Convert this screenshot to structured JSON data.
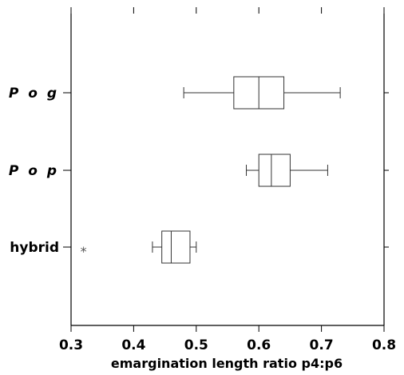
{
  "chart_data": {
    "type": "boxplot",
    "orientation": "horizontal",
    "title": "",
    "xlabel": "emargination length ratio p4:p6",
    "ylabel": "",
    "xlim": [
      0.3,
      0.8
    ],
    "x_ticks": [
      {
        "value": 0.3,
        "label": "0.3"
      },
      {
        "value": 0.4,
        "label": "0.4"
      },
      {
        "value": 0.5,
        "label": "0.5"
      },
      {
        "value": 0.6,
        "label": "0.6"
      },
      {
        "value": 0.7,
        "label": "0.7"
      },
      {
        "value": 0.8,
        "label": "0.8"
      }
    ],
    "grid": false,
    "categories": [
      {
        "label": "P o g",
        "italic": true,
        "whisker_low": 0.48,
        "q1": 0.56,
        "median": 0.6,
        "q3": 0.64,
        "whisker_high": 0.73,
        "outliers": []
      },
      {
        "label": "P o p",
        "italic": true,
        "whisker_low": 0.58,
        "q1": 0.6,
        "median": 0.62,
        "q3": 0.65,
        "whisker_high": 0.71,
        "outliers": []
      },
      {
        "label": "hybrid",
        "italic": false,
        "whisker_low": 0.43,
        "q1": 0.445,
        "median": 0.46,
        "q3": 0.49,
        "whisker_high": 0.5,
        "outliers": [
          0.32
        ]
      }
    ],
    "outlier_symbol": "*"
  }
}
